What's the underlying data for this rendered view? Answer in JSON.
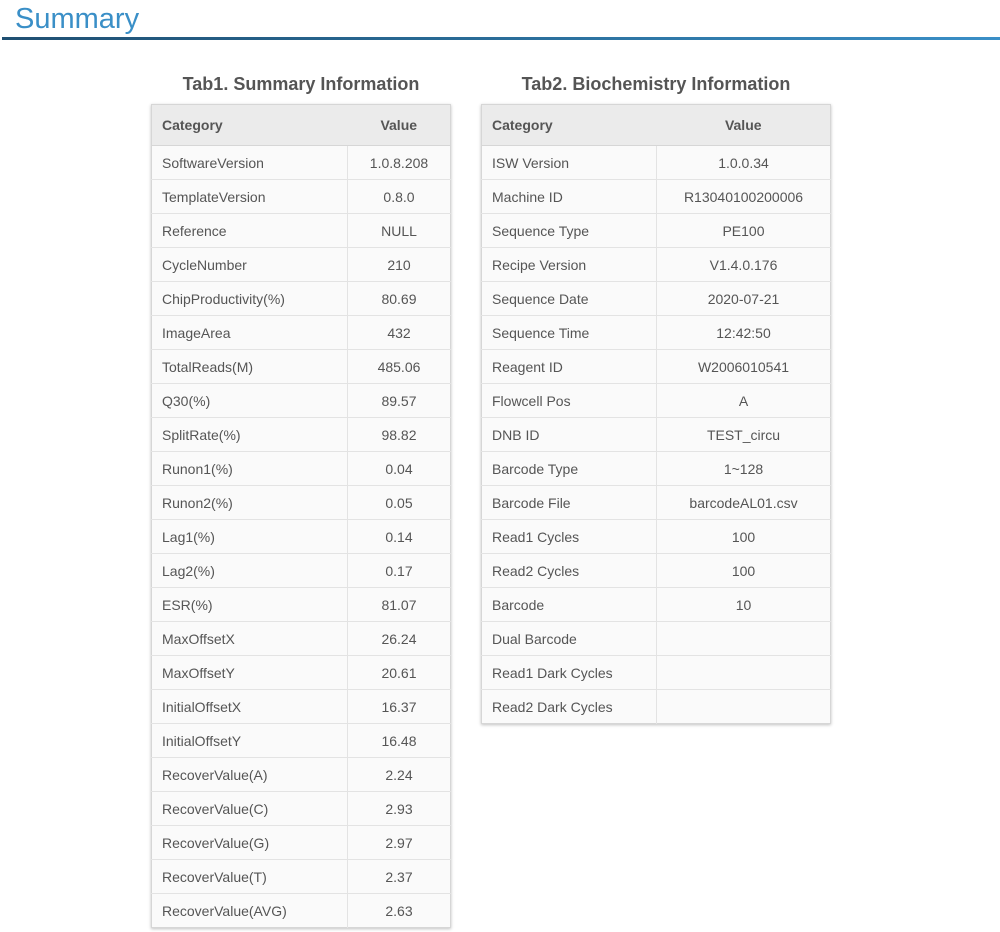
{
  "page": {
    "title": "Summary"
  },
  "tab1": {
    "caption": "Tab1. Summary Information",
    "headers": {
      "category": "Category",
      "value": "Value"
    },
    "rows": [
      {
        "category": "SoftwareVersion",
        "value": "1.0.8.208"
      },
      {
        "category": "TemplateVersion",
        "value": "0.8.0"
      },
      {
        "category": "Reference",
        "value": "NULL"
      },
      {
        "category": "CycleNumber",
        "value": "210"
      },
      {
        "category": "ChipProductivity(%)",
        "value": "80.69"
      },
      {
        "category": "ImageArea",
        "value": "432"
      },
      {
        "category": "TotalReads(M)",
        "value": "485.06"
      },
      {
        "category": "Q30(%)",
        "value": "89.57"
      },
      {
        "category": "SplitRate(%)",
        "value": "98.82"
      },
      {
        "category": "Runon1(%)",
        "value": "0.04"
      },
      {
        "category": "Runon2(%)",
        "value": "0.05"
      },
      {
        "category": "Lag1(%)",
        "value": "0.14"
      },
      {
        "category": "Lag2(%)",
        "value": "0.17"
      },
      {
        "category": "ESR(%)",
        "value": "81.07"
      },
      {
        "category": "MaxOffsetX",
        "value": "26.24"
      },
      {
        "category": "MaxOffsetY",
        "value": "20.61"
      },
      {
        "category": "InitialOffsetX",
        "value": "16.37"
      },
      {
        "category": "InitialOffsetY",
        "value": "16.48"
      },
      {
        "category": "RecoverValue(A)",
        "value": "2.24"
      },
      {
        "category": "RecoverValue(C)",
        "value": "2.93"
      },
      {
        "category": "RecoverValue(G)",
        "value": "2.97"
      },
      {
        "category": "RecoverValue(T)",
        "value": "2.37"
      },
      {
        "category": "RecoverValue(AVG)",
        "value": "2.63"
      }
    ]
  },
  "tab2": {
    "caption": "Tab2. Biochemistry Information",
    "headers": {
      "category": "Category",
      "value": "Value"
    },
    "rows": [
      {
        "category": "ISW Version",
        "value": "1.0.0.34"
      },
      {
        "category": "Machine ID",
        "value": "R13040100200006"
      },
      {
        "category": "Sequence Type",
        "value": "PE100"
      },
      {
        "category": "Recipe Version",
        "value": "V1.4.0.176"
      },
      {
        "category": "Sequence Date",
        "value": "2020-07-21"
      },
      {
        "category": "Sequence Time",
        "value": "12:42:50"
      },
      {
        "category": "Reagent ID",
        "value": "W2006010541"
      },
      {
        "category": "Flowcell Pos",
        "value": "A"
      },
      {
        "category": "DNB ID",
        "value": "TEST_circu"
      },
      {
        "category": "Barcode Type",
        "value": "1~128"
      },
      {
        "category": "Barcode File",
        "value": "barcodeAL01.csv"
      },
      {
        "category": "Read1 Cycles",
        "value": "100"
      },
      {
        "category": "Read2 Cycles",
        "value": "100"
      },
      {
        "category": "Barcode",
        "value": "10"
      },
      {
        "category": "Dual Barcode",
        "value": ""
      },
      {
        "category": "Read1 Dark Cycles",
        "value": ""
      },
      {
        "category": "Read2 Dark Cycles",
        "value": ""
      }
    ]
  },
  "colors": {
    "title": "#3a8fc7",
    "rule_dark": "#1f4f72",
    "header_bg": "#ebebeb",
    "row_bg": "#fafafa"
  }
}
